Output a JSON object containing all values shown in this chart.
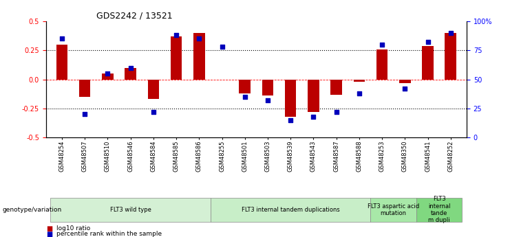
{
  "title": "GDS2242 / 13521",
  "samples": [
    "GSM48254",
    "GSM48507",
    "GSM48510",
    "GSM48546",
    "GSM48584",
    "GSM48585",
    "GSM48586",
    "GSM48255",
    "GSM48501",
    "GSM48503",
    "GSM48539",
    "GSM48543",
    "GSM48587",
    "GSM48588",
    "GSM48253",
    "GSM48350",
    "GSM48541",
    "GSM48252"
  ],
  "log10_ratio": [
    0.3,
    -0.15,
    0.05,
    0.1,
    -0.17,
    0.37,
    0.4,
    0.0,
    -0.12,
    -0.14,
    -0.32,
    -0.28,
    -0.13,
    -0.02,
    0.26,
    -0.03,
    0.29,
    0.4
  ],
  "percentile_rank": [
    85,
    20,
    55,
    60,
    22,
    88,
    85,
    78,
    35,
    32,
    15,
    18,
    22,
    38,
    80,
    42,
    82,
    90
  ],
  "ylim_left": [
    -0.5,
    0.5
  ],
  "ylim_right": [
    0,
    100
  ],
  "yticks_left": [
    -0.5,
    -0.25,
    0.0,
    0.25,
    0.5
  ],
  "yticks_right": [
    0,
    25,
    50,
    75,
    100
  ],
  "ytick_labels_right": [
    "0",
    "25",
    "50",
    "75",
    "100%"
  ],
  "groups": [
    {
      "label": "FLT3 wild type",
      "start": 0,
      "end": 6,
      "color": "#d4f0d4"
    },
    {
      "label": "FLT3 internal tandem duplications",
      "start": 7,
      "end": 13,
      "color": "#c8eec8"
    },
    {
      "label": "FLT3 aspartic acid\nmutation",
      "start": 14,
      "end": 15,
      "color": "#a8e8a8"
    },
    {
      "label": "FLT3\ninternal\ntande\nm dupli",
      "start": 16,
      "end": 17,
      "color": "#80d880"
    }
  ],
  "bar_color_red": "#bb0000",
  "dot_color_blue": "#0000bb",
  "legend_label_ratio": "log10 ratio",
  "legend_label_pct": "percentile rank within the sample",
  "bar_width": 0.5,
  "dot_size": 18,
  "genotype_label": "genotype/variation"
}
